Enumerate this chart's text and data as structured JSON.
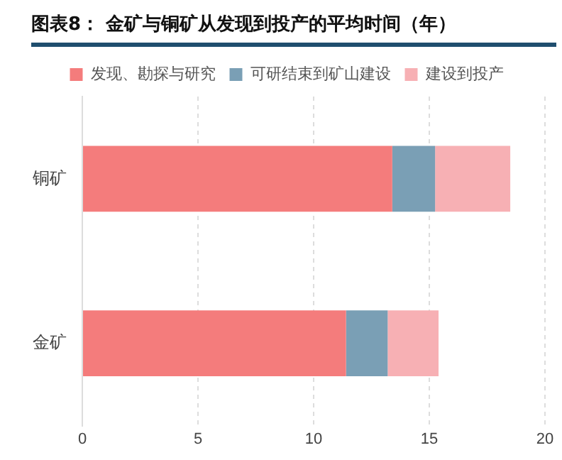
{
  "chart_data": {
    "type": "bar",
    "orientation": "horizontal",
    "stacked": true,
    "title": "图表8：  金矿与铜矿从发现到投产的平均时间（年）",
    "categories": [
      "铜矿",
      "金矿"
    ],
    "series": [
      {
        "name": "发现、勘探与研究",
        "color": "#f47c7c",
        "values": [
          13.4,
          11.4
        ]
      },
      {
        "name": "可研结束到矿山建设",
        "color": "#7a9fb5",
        "values": [
          1.85,
          1.8
        ]
      },
      {
        "name": "建设到投产",
        "color": "#f7b0b4",
        "values": [
          3.25,
          2.2
        ]
      }
    ],
    "xlim": [
      0,
      20
    ],
    "xticks": [
      0,
      5,
      10,
      15,
      20
    ],
    "grid": "x",
    "legend": "top"
  }
}
